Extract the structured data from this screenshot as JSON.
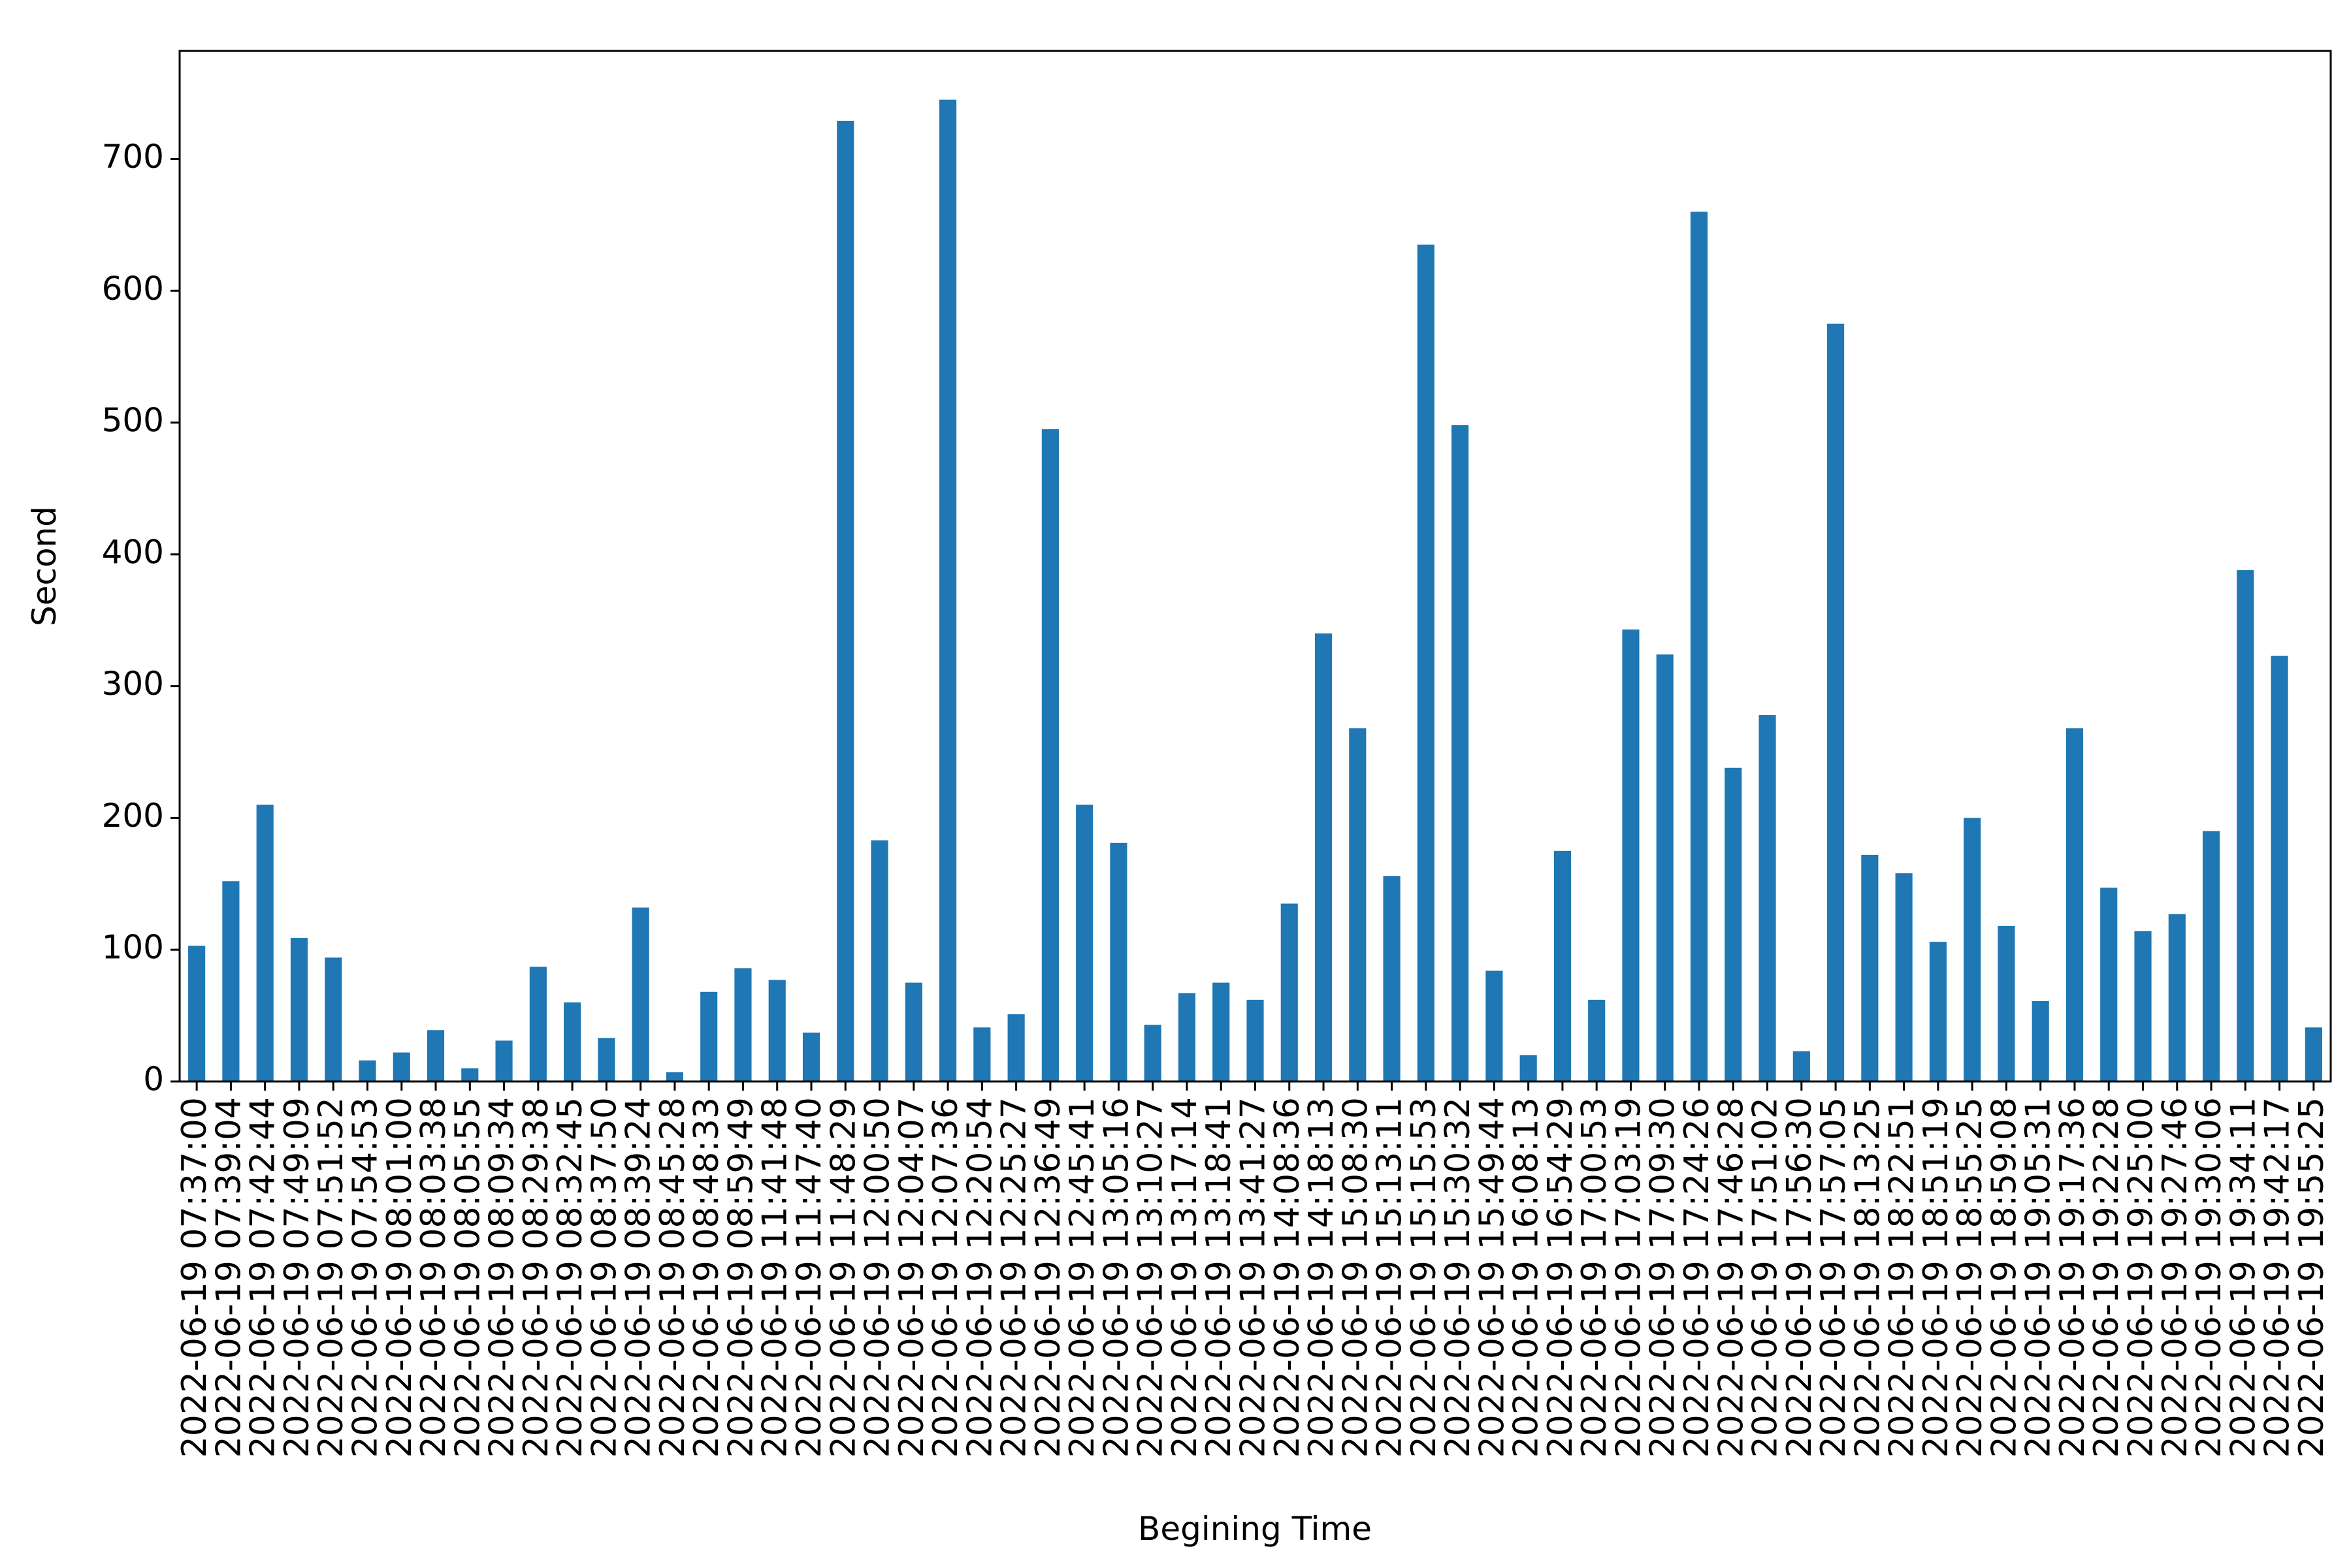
{
  "chart_data": {
    "type": "bar",
    "x_label": "Begining Time",
    "y_label": "Second",
    "categories": [
      "2022-06-19 07:37:00",
      "2022-06-19 07:39:04",
      "2022-06-19 07:42:44",
      "2022-06-19 07:49:09",
      "2022-06-19 07:51:52",
      "2022-06-19 07:54:53",
      "2022-06-19 08:01:00",
      "2022-06-19 08:03:38",
      "2022-06-19 08:05:55",
      "2022-06-19 08:09:34",
      "2022-06-19 08:29:38",
      "2022-06-19 08:32:45",
      "2022-06-19 08:37:50",
      "2022-06-19 08:39:24",
      "2022-06-19 08:45:28",
      "2022-06-19 08:48:33",
      "2022-06-19 08:59:49",
      "2022-06-19 11:41:48",
      "2022-06-19 11:47:40",
      "2022-06-19 11:48:29",
      "2022-06-19 12:00:50",
      "2022-06-19 12:04:07",
      "2022-06-19 12:07:36",
      "2022-06-19 12:20:54",
      "2022-06-19 12:25:27",
      "2022-06-19 12:36:49",
      "2022-06-19 12:45:41",
      "2022-06-19 13:05:16",
      "2022-06-19 13:10:27",
      "2022-06-19 13:17:14",
      "2022-06-19 13:18:41",
      "2022-06-19 13:41:27",
      "2022-06-19 14:08:36",
      "2022-06-19 14:18:13",
      "2022-06-19 15:08:30",
      "2022-06-19 15:13:11",
      "2022-06-19 15:15:53",
      "2022-06-19 15:30:32",
      "2022-06-19 15:49:44",
      "2022-06-19 16:08:13",
      "2022-06-19 16:54:29",
      "2022-06-19 17:00:53",
      "2022-06-19 17:03:19",
      "2022-06-19 17:09:30",
      "2022-06-19 17:24:26",
      "2022-06-19 17:46:28",
      "2022-06-19 17:51:02",
      "2022-06-19 17:56:30",
      "2022-06-19 17:57:05",
      "2022-06-19 18:13:25",
      "2022-06-19 18:22:51",
      "2022-06-19 18:51:19",
      "2022-06-19 18:55:25",
      "2022-06-19 18:59:08",
      "2022-06-19 19:05:31",
      "2022-06-19 19:17:36",
      "2022-06-19 19:22:28",
      "2022-06-19 19:25:00",
      "2022-06-19 19:27:46",
      "2022-06-19 19:30:06",
      "2022-06-19 19:34:11",
      "2022-06-19 19:42:17",
      "2022-06-19 19:55:25"
    ],
    "values": [
      103,
      152,
      210,
      109,
      94,
      16,
      22,
      39,
      10,
      31,
      87,
      60,
      33,
      132,
      7,
      68,
      86,
      77,
      37,
      729,
      183,
      75,
      745,
      41,
      51,
      495,
      210,
      181,
      43,
      67,
      75,
      62,
      135,
      340,
      268,
      156,
      635,
      498,
      84,
      20,
      175,
      62,
      343,
      324,
      660,
      238,
      278,
      23,
      575,
      172,
      158,
      106,
      200,
      118,
      61,
      268,
      147,
      114,
      127,
      190,
      388,
      323,
      41
    ],
    "color": "#1f77b4",
    "ylim": [
      0,
      782
    ],
    "yticks": [
      0,
      100,
      200,
      300,
      400,
      500,
      600,
      700
    ],
    "grid": false
  }
}
